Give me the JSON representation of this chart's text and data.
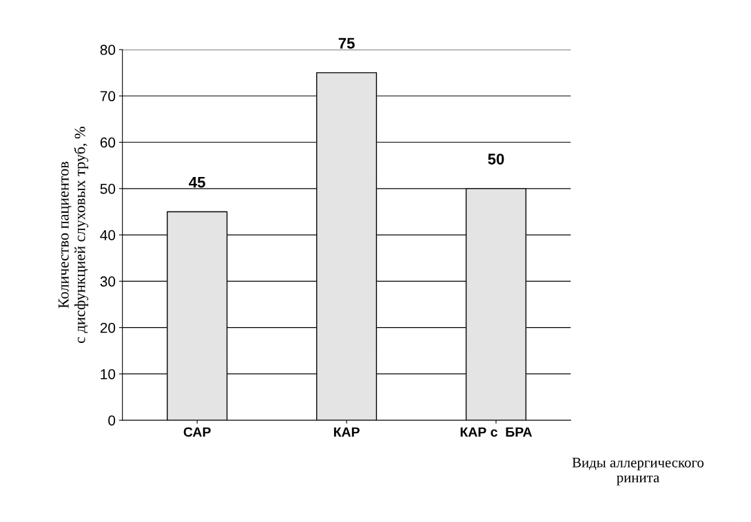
{
  "chart_data": {
    "type": "bar",
    "categories": [
      "САР",
      "КАР",
      "КАР с  БРА"
    ],
    "values": [
      45,
      75,
      50
    ],
    "color": "#e4e4e4",
    "ylim": [
      0,
      80
    ],
    "yticks": [
      0,
      10,
      20,
      30,
      40,
      50,
      60,
      70,
      80
    ],
    "ylabel": "Количество пациентов\nс дисфункцией слуховых труб, %",
    "xlabel": "Виды аллергического\nринита",
    "grid": "y",
    "data_labels": true
  }
}
